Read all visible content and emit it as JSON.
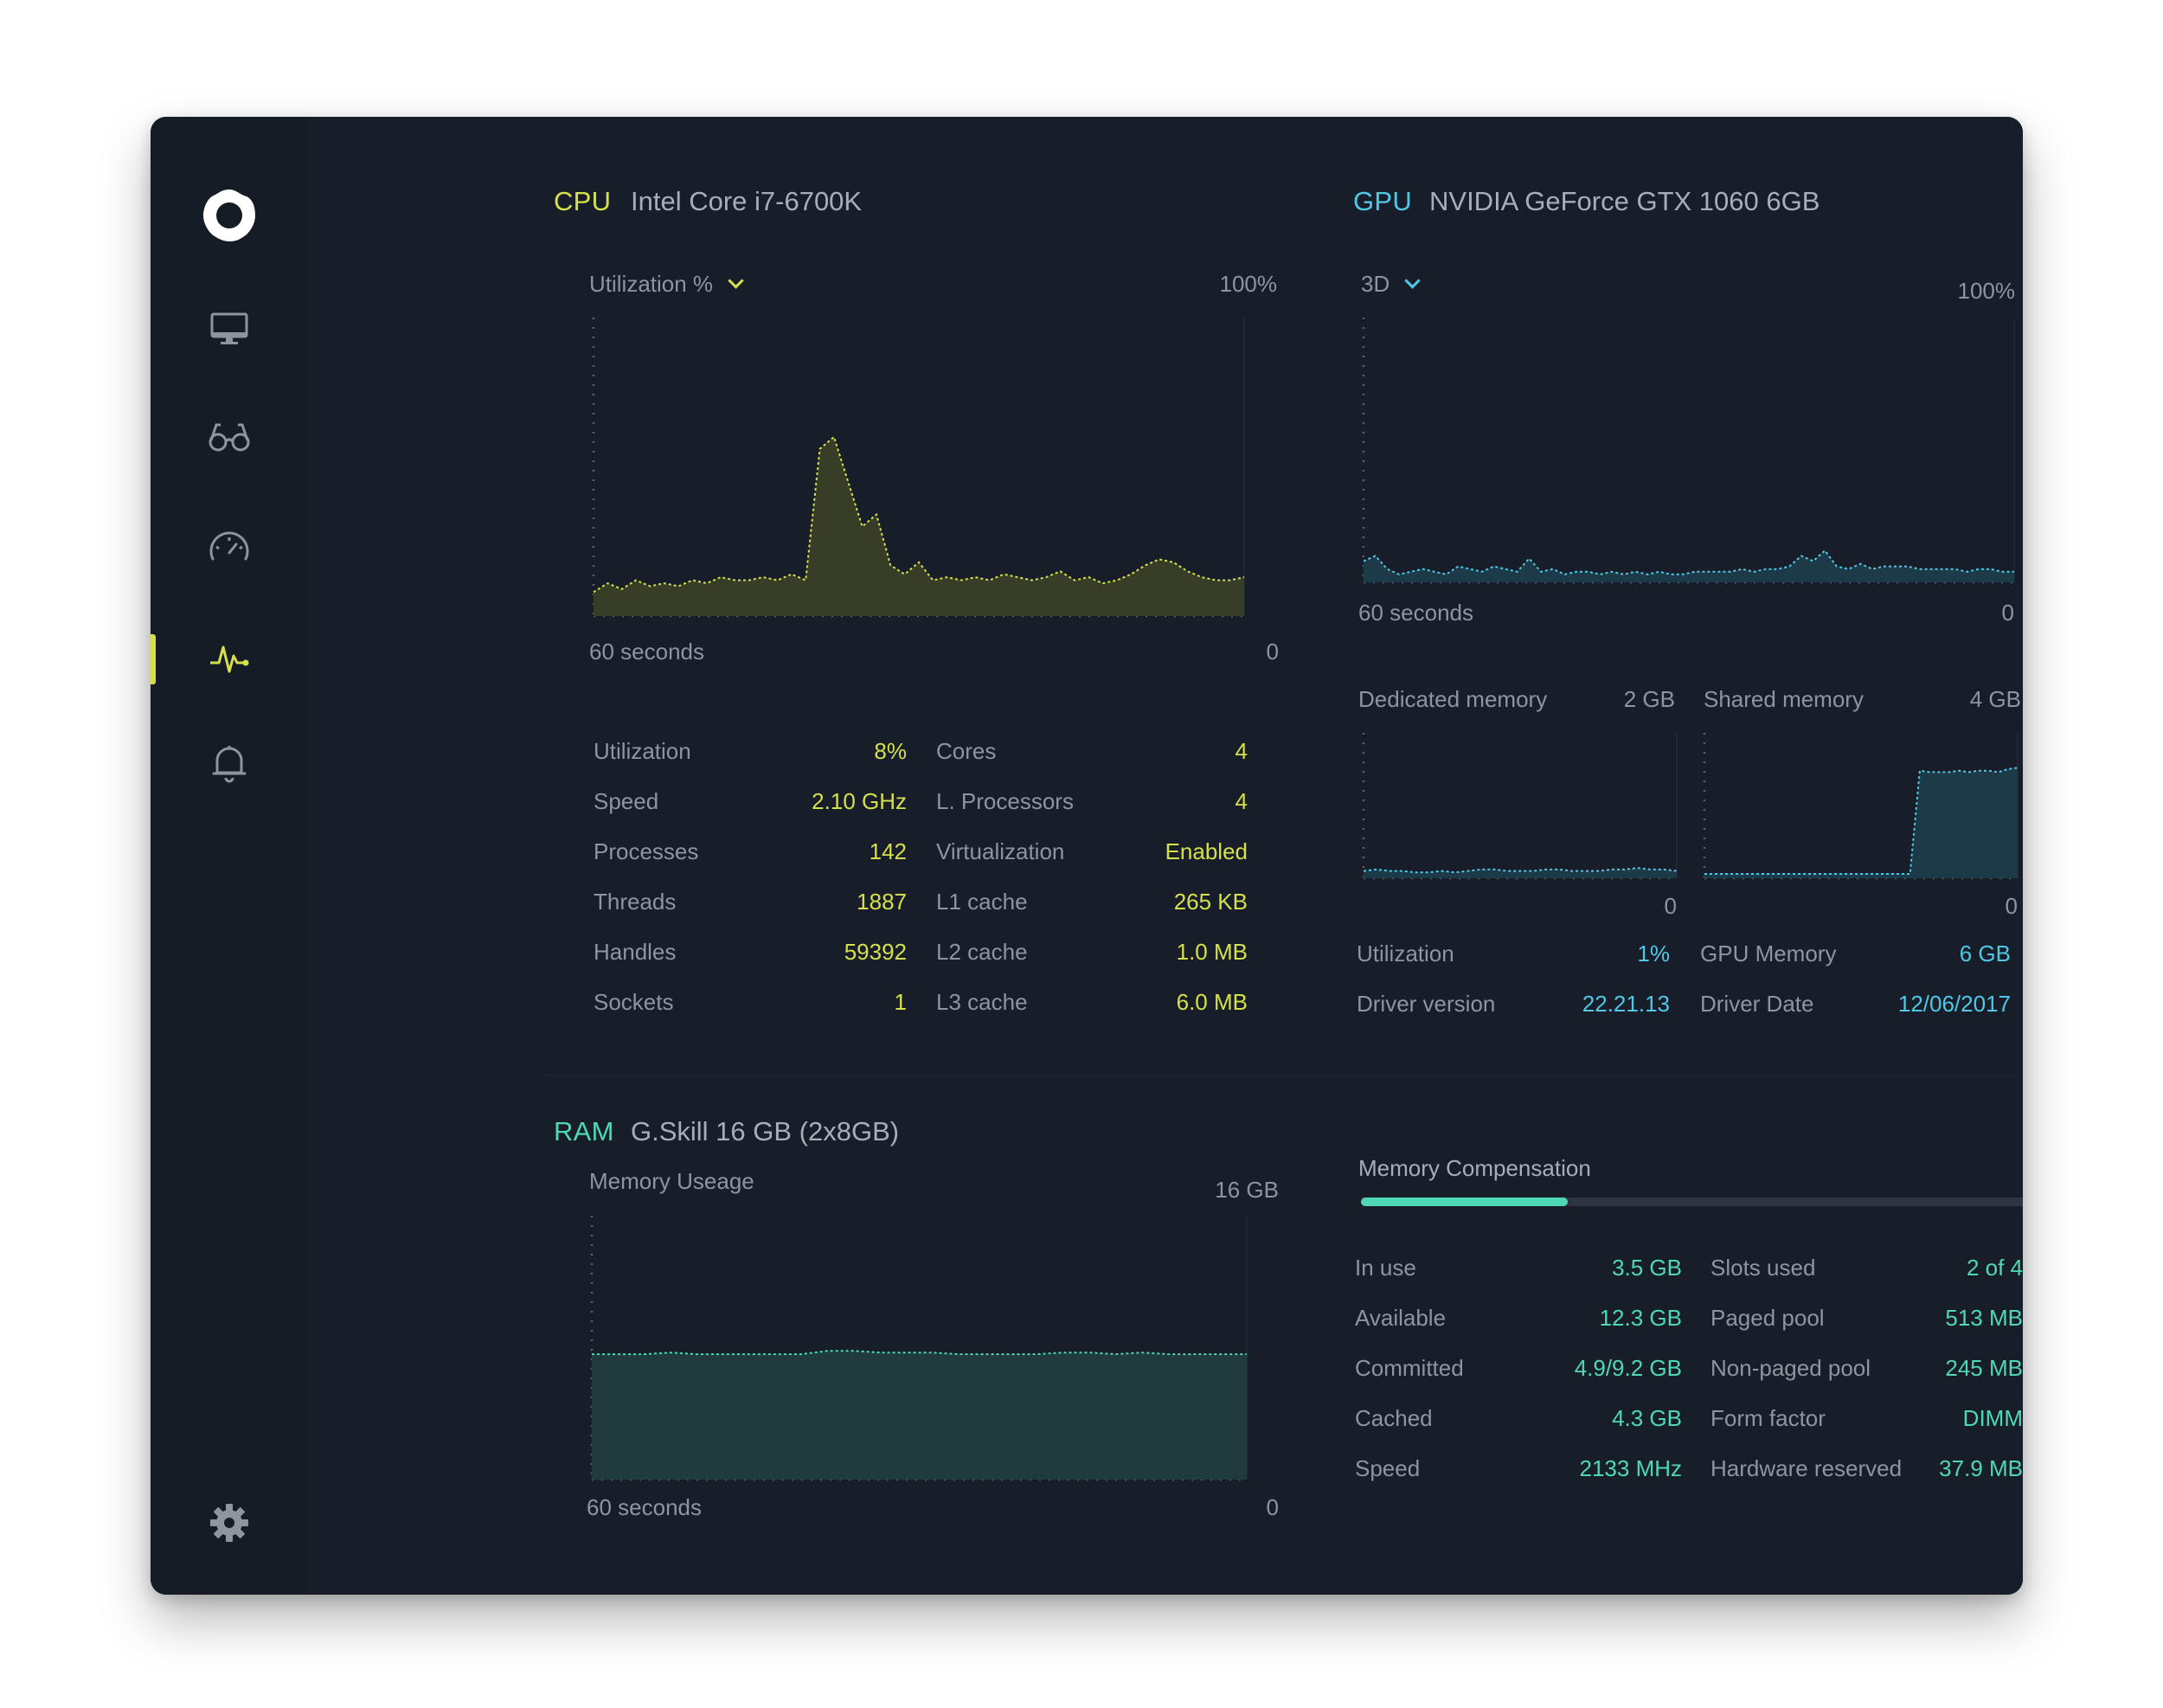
{
  "sidebar": {
    "icons": [
      "logo-icon",
      "monitor-icon",
      "glasses-icon",
      "speedometer-icon",
      "pulse-icon",
      "bell-icon",
      "gear-icon"
    ],
    "active": "pulse-icon",
    "accent": "#d5e04a"
  },
  "cpu": {
    "label": "CPU",
    "model": "Intel Core i7-6700K",
    "dropdown": "Utilization %",
    "max_label": "100%",
    "time_label": "60 seconds",
    "zero_label": "0",
    "color": "#d5e04a",
    "stats": [
      {
        "label": "Utilization",
        "value": "8%"
      },
      {
        "label": "Speed",
        "value": "2.10 GHz"
      },
      {
        "label": "Processes",
        "value": "142"
      },
      {
        "label": "Threads",
        "value": "1887"
      },
      {
        "label": "Handles",
        "value": "59392"
      },
      {
        "label": "Sockets",
        "value": "1"
      }
    ],
    "stats2": [
      {
        "label": "Cores",
        "value": "4"
      },
      {
        "label": "L. Processors",
        "value": "4"
      },
      {
        "label": "Virtualization",
        "value": "Enabled"
      },
      {
        "label": "L1 cache",
        "value": "265 KB"
      },
      {
        "label": "L2 cache",
        "value": "1.0 MB"
      },
      {
        "label": "L3 cache",
        "value": "6.0 MB"
      }
    ]
  },
  "gpu": {
    "label": "GPU",
    "model": "NVIDIA GeForce GTX 1060 6GB",
    "dropdown": "3D",
    "max_label": "100%",
    "time_label": "60 seconds",
    "zero_label": "0",
    "color": "#4fc8e6",
    "dedicated": {
      "label": "Dedicated memory",
      "max": "2 GB",
      "zero": "0"
    },
    "shared": {
      "label": "Shared memory",
      "max": "4 GB",
      "zero": "0"
    },
    "stats": [
      {
        "label": "Utilization",
        "value": "1%"
      },
      {
        "label": "Driver version",
        "value": "22.21.13"
      }
    ],
    "stats2": [
      {
        "label": "GPU Memory",
        "value": "6 GB"
      },
      {
        "label": "Driver Date",
        "value": "12/06/2017"
      }
    ]
  },
  "ram": {
    "label": "RAM",
    "model": "G.Skill 16 GB (2x8GB)",
    "chart_title": "Memory Useage",
    "max_label": "16 GB",
    "time_label": "60 seconds",
    "zero_label": "0",
    "color": "#4ed8b4",
    "compensation": {
      "label": "Memory Compensation",
      "fraction": 0.31
    },
    "stats": [
      {
        "label": "In use",
        "value": "3.5 GB"
      },
      {
        "label": "Available",
        "value": "12.3 GB"
      },
      {
        "label": "Committed",
        "value": "4.9/9.2 GB"
      },
      {
        "label": "Cached",
        "value": "4.3 GB"
      },
      {
        "label": "Speed",
        "value": "2133 MHz"
      }
    ],
    "stats2": [
      {
        "label": "Slots used",
        "value": "2 of 4"
      },
      {
        "label": "Paged pool",
        "value": "513 MB"
      },
      {
        "label": "Non-paged pool",
        "value": "245 MB"
      },
      {
        "label": "Form factor",
        "value": "DIMM"
      },
      {
        "label": "Hardware reserved",
        "value": "37.9 MB"
      }
    ]
  },
  "chart_data": [
    {
      "type": "area",
      "ylim": [
        0,
        100
      ],
      "series": [
        {
          "values": [
            8,
            11,
            9,
            12,
            10,
            11,
            10,
            12,
            11,
            13,
            12,
            12,
            13,
            12,
            14,
            12,
            56,
            60,
            45,
            30,
            34,
            17,
            14,
            18,
            12,
            13,
            12,
            13,
            12,
            14,
            13,
            12,
            13,
            15,
            12,
            13,
            11,
            12,
            14,
            17,
            19,
            18,
            15,
            13,
            12,
            12,
            13
          ]
        }
      ]
    },
    {
      "type": "area",
      "ylim": [
        0,
        100
      ],
      "series": [
        {
          "values": [
            8,
            10,
            5,
            3,
            4,
            5,
            4,
            3,
            6,
            5,
            4,
            6,
            5,
            4,
            9,
            4,
            5,
            3,
            4,
            4,
            3,
            4,
            3,
            4,
            3,
            4,
            3,
            3,
            4,
            4,
            4,
            4,
            5,
            4,
            5,
            5,
            6,
            10,
            8,
            12,
            6,
            5,
            7,
            5,
            6,
            6,
            6,
            5,
            5,
            5,
            5,
            4,
            5,
            5,
            4,
            4
          ]
        }
      ]
    },
    {
      "type": "area",
      "ylim": [
        0,
        100
      ],
      "series": [
        {
          "values": [
            5,
            6,
            5,
            5,
            4,
            4,
            5,
            4,
            5,
            6,
            6,
            5,
            5,
            5,
            6,
            6,
            5,
            5,
            5,
            6,
            6,
            7,
            6,
            6,
            5
          ]
        }
      ]
    },
    {
      "type": "area",
      "ylim": [
        0,
        100
      ],
      "series": [
        {
          "values": [
            3,
            3,
            3,
            3,
            3,
            3,
            3,
            3,
            3,
            3,
            3,
            3,
            3,
            3,
            3,
            3,
            3,
            3,
            3,
            3,
            3,
            3,
            74,
            73,
            73,
            73,
            74,
            73,
            74,
            74,
            73,
            75,
            76
          ]
        }
      ]
    },
    {
      "type": "area",
      "ylim": [
        0,
        16
      ],
      "series": [
        {
          "values": [
            7.6,
            7.6,
            7.6,
            7.7,
            7.6,
            7.6,
            7.6,
            7.6,
            7.6,
            7.8,
            7.8,
            7.7,
            7.7,
            7.7,
            7.6,
            7.6,
            7.6,
            7.6,
            7.7,
            7.7,
            7.6,
            7.7,
            7.6,
            7.6,
            7.6,
            7.6
          ]
        }
      ]
    }
  ]
}
